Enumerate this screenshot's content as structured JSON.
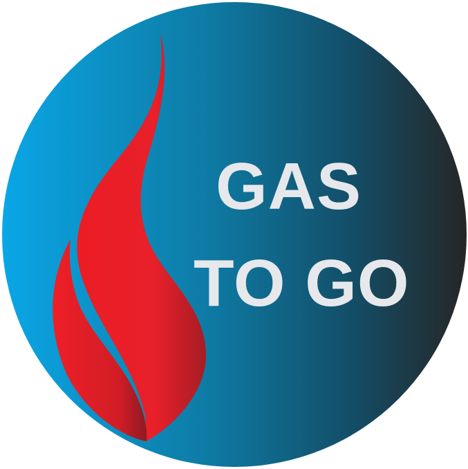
{
  "logo": {
    "line_1": "GAS",
    "line_2": "TO GO",
    "icon": "flame-icon",
    "colors": {
      "background_start": "#0aa3e0",
      "background_mid": "#0f6f95",
      "background_end": "#252525",
      "flame": "#e8202a",
      "flame_shadow": "#9e1c24",
      "text": "#e6e8ec"
    }
  }
}
